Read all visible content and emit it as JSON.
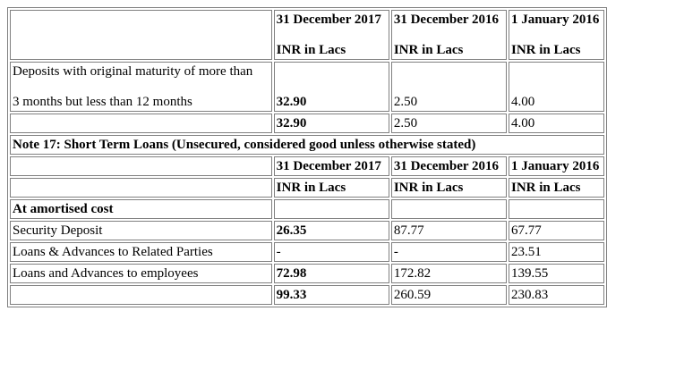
{
  "header_block": {
    "col1": "31 December 2017",
    "col2": "31 December 2016",
    "col3": "1 January 2016",
    "unit1": "INR in Lacs",
    "unit2": "INR in Lacs",
    "unit3": "INR in Lacs"
  },
  "deposits_row": {
    "label_line1": "Deposits with original maturity of more than",
    "label_line2": "3 months but less than 12 months",
    "v2017": "32.90",
    "v2016": "2.50",
    "v2016jan": "4.00"
  },
  "deposits_total": {
    "v2017": "32.90",
    "v2016": "2.50",
    "v2016jan": "4.00"
  },
  "note17": {
    "title": "Note 17: Short Term Loans (Unsecured, considered good unless otherwise stated)",
    "col1": "31 December 2017",
    "col2": "31 December 2016",
    "col3": "1 January 2016",
    "unit1": "INR in Lacs",
    "unit2": "INR in Lacs",
    "unit3": "INR in Lacs",
    "section": "At amortised cost",
    "rows": [
      {
        "label": "Security Deposit",
        "v2017": "26.35",
        "v2016": "87.77",
        "v2016jan": "67.77"
      },
      {
        "label": "Loans & Advances to Related Parties",
        "v2017": "-",
        "v2016": "-",
        "v2016jan": "23.51"
      },
      {
        "label": "Loans and Advances to employees",
        "v2017": "72.98",
        "v2016": "172.82",
        "v2016jan": "139.55"
      }
    ],
    "total": {
      "v2017": "99.33",
      "v2016": "260.59",
      "v2016jan": "230.83"
    }
  }
}
